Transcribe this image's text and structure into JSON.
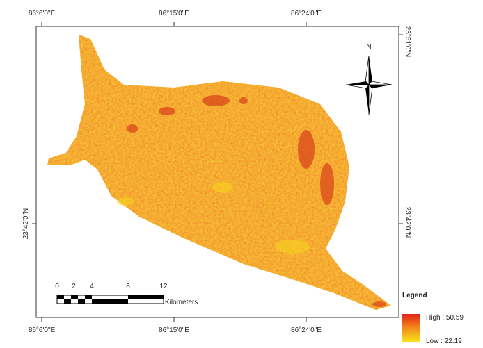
{
  "map": {
    "top_labels": [
      "86°6'0\"E",
      "86°15'0\"E",
      "86°24'0\"E"
    ],
    "bottom_labels": [
      "86°6'0\"E",
      "86°15'0\"E",
      "86°24'0\"E"
    ],
    "left_labels": [
      "23°42'0\"N"
    ],
    "right_labels": [
      "23°51'0\"N",
      "23°42'0\"N"
    ],
    "north": "N",
    "scale": {
      "ticks": [
        "0",
        "2",
        "4",
        "8",
        "12"
      ],
      "unit": "Kilometers"
    },
    "legend": {
      "title": "Legend",
      "high": "High : 50.59",
      "low": "Low : 22.19"
    }
  }
}
